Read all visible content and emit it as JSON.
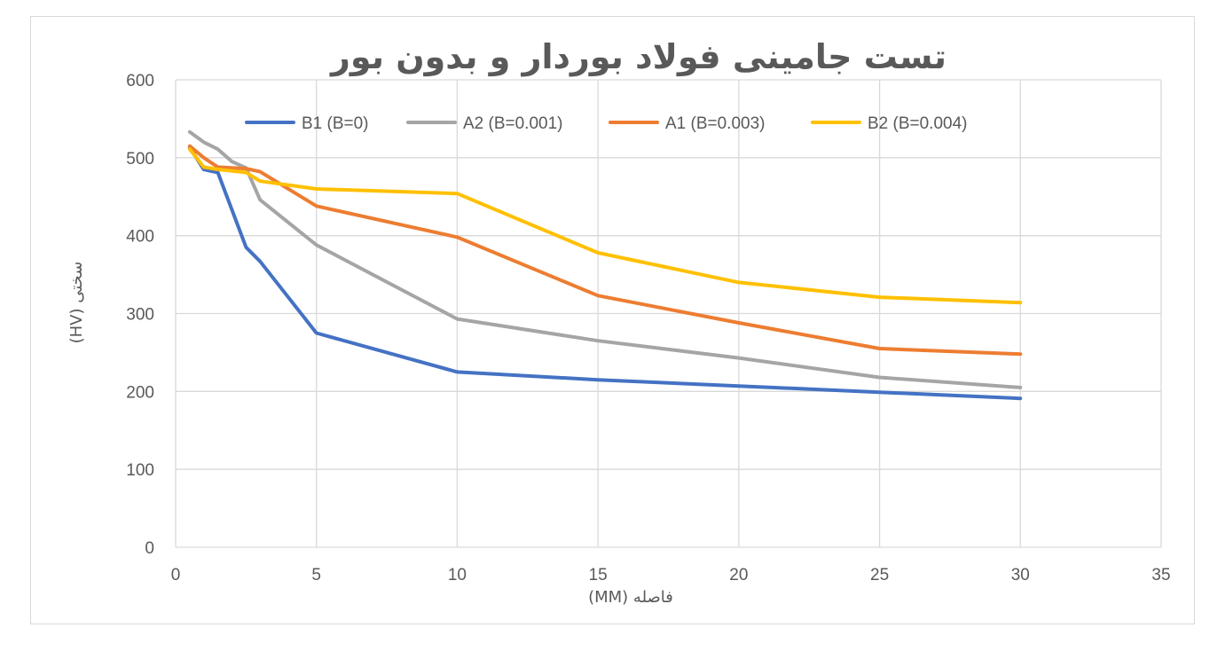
{
  "chart_data": {
    "type": "line",
    "title": "تست جامینی فولاد بوردار و بدون بور",
    "xlabel": "فاصله (MM)",
    "ylabel": "سختی (HV)",
    "xlim": [
      0,
      35
    ],
    "ylim": [
      0,
      600
    ],
    "x_ticks": [
      "0",
      "5",
      "10",
      "15",
      "20",
      "25",
      "30",
      "35"
    ],
    "y_ticks": [
      "0",
      "100",
      "200",
      "300",
      "400",
      "500",
      "600"
    ],
    "grid": true,
    "legend_position": "top",
    "series": [
      {
        "name": "B1 (B=0)",
        "color": "#4472c4",
        "points": [
          [
            0.5,
            513
          ],
          [
            1,
            485
          ],
          [
            1.5,
            481
          ],
          [
            2.5,
            385
          ],
          [
            3,
            367
          ],
          [
            5,
            275
          ],
          [
            10,
            225
          ],
          [
            15,
            215
          ],
          [
            20,
            207
          ],
          [
            25,
            199
          ],
          [
            30,
            191
          ]
        ]
      },
      {
        "name": "A2 (B=0.001)",
        "color": "#a5a5a5",
        "points": [
          [
            0.5,
            533
          ],
          [
            1,
            520
          ],
          [
            1.5,
            511
          ],
          [
            2,
            495
          ],
          [
            2.5,
            487
          ],
          [
            3,
            446
          ],
          [
            5,
            388
          ],
          [
            10,
            293
          ],
          [
            15,
            265
          ],
          [
            20,
            243
          ],
          [
            25,
            218
          ],
          [
            30,
            205
          ]
        ]
      },
      {
        "name": "A1 (B=0.003)",
        "color": "#ed7d31",
        "points": [
          [
            0.5,
            515
          ],
          [
            1,
            500
          ],
          [
            1.5,
            488
          ],
          [
            2.5,
            486
          ],
          [
            3,
            482
          ],
          [
            5,
            438
          ],
          [
            10,
            398
          ],
          [
            15,
            323
          ],
          [
            20,
            288
          ],
          [
            25,
            255
          ],
          [
            30,
            248
          ]
        ]
      },
      {
        "name": "B2 (B=0.004)",
        "color": "#ffc000",
        "points": [
          [
            0.5,
            511
          ],
          [
            1,
            488
          ],
          [
            1.5,
            485
          ],
          [
            2.5,
            481
          ],
          [
            3,
            470
          ],
          [
            5,
            460
          ],
          [
            10,
            454
          ],
          [
            15,
            378
          ],
          [
            20,
            340
          ],
          [
            25,
            321
          ],
          [
            30,
            314
          ]
        ]
      }
    ]
  }
}
